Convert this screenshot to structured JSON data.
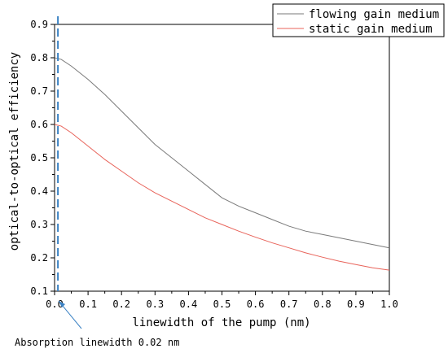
{
  "chart_data": {
    "type": "line",
    "title": "",
    "xlabel": "linewidth of the pump (nm)",
    "ylabel": "optical-to-optical efficiency",
    "xlim": [
      0.0,
      1.0
    ],
    "ylim": [
      0.1,
      0.9
    ],
    "x_ticks": [
      "0.0",
      "0.1",
      "0.2",
      "0.3",
      "0.4",
      "0.5",
      "0.6",
      "0.7",
      "0.8",
      "0.9",
      "1.0"
    ],
    "y_ticks": [
      "0.1",
      "0.2",
      "0.3",
      "0.4",
      "0.5",
      "0.6",
      "0.7",
      "0.8",
      "0.9"
    ],
    "grid": false,
    "legend_position": "top-right",
    "x": [
      0.0,
      0.02,
      0.05,
      0.1,
      0.15,
      0.2,
      0.25,
      0.3,
      0.35,
      0.4,
      0.45,
      0.5,
      0.55,
      0.6,
      0.65,
      0.7,
      0.75,
      0.8,
      0.85,
      0.9,
      0.95,
      1.0
    ],
    "series": [
      {
        "name": "flowing gain medium",
        "color": "#7a7a7a",
        "values": [
          0.8,
          0.795,
          0.775,
          0.735,
          0.69,
          0.64,
          0.59,
          0.54,
          0.5,
          0.46,
          0.42,
          0.38,
          0.355,
          0.335,
          0.315,
          0.295,
          0.28,
          0.27,
          0.26,
          0.25,
          0.24,
          0.23
        ]
      },
      {
        "name": "static gain medium",
        "color": "#e8635a",
        "values": [
          0.6,
          0.595,
          0.575,
          0.535,
          0.495,
          0.46,
          0.425,
          0.395,
          0.37,
          0.345,
          0.32,
          0.3,
          0.28,
          0.262,
          0.245,
          0.23,
          0.215,
          0.202,
          0.19,
          0.18,
          0.17,
          0.163
        ]
      }
    ],
    "marker_line": {
      "x": 0.01,
      "color": "#3b82c4",
      "annotation": "Absorption linewidth 0.02 nm"
    }
  }
}
